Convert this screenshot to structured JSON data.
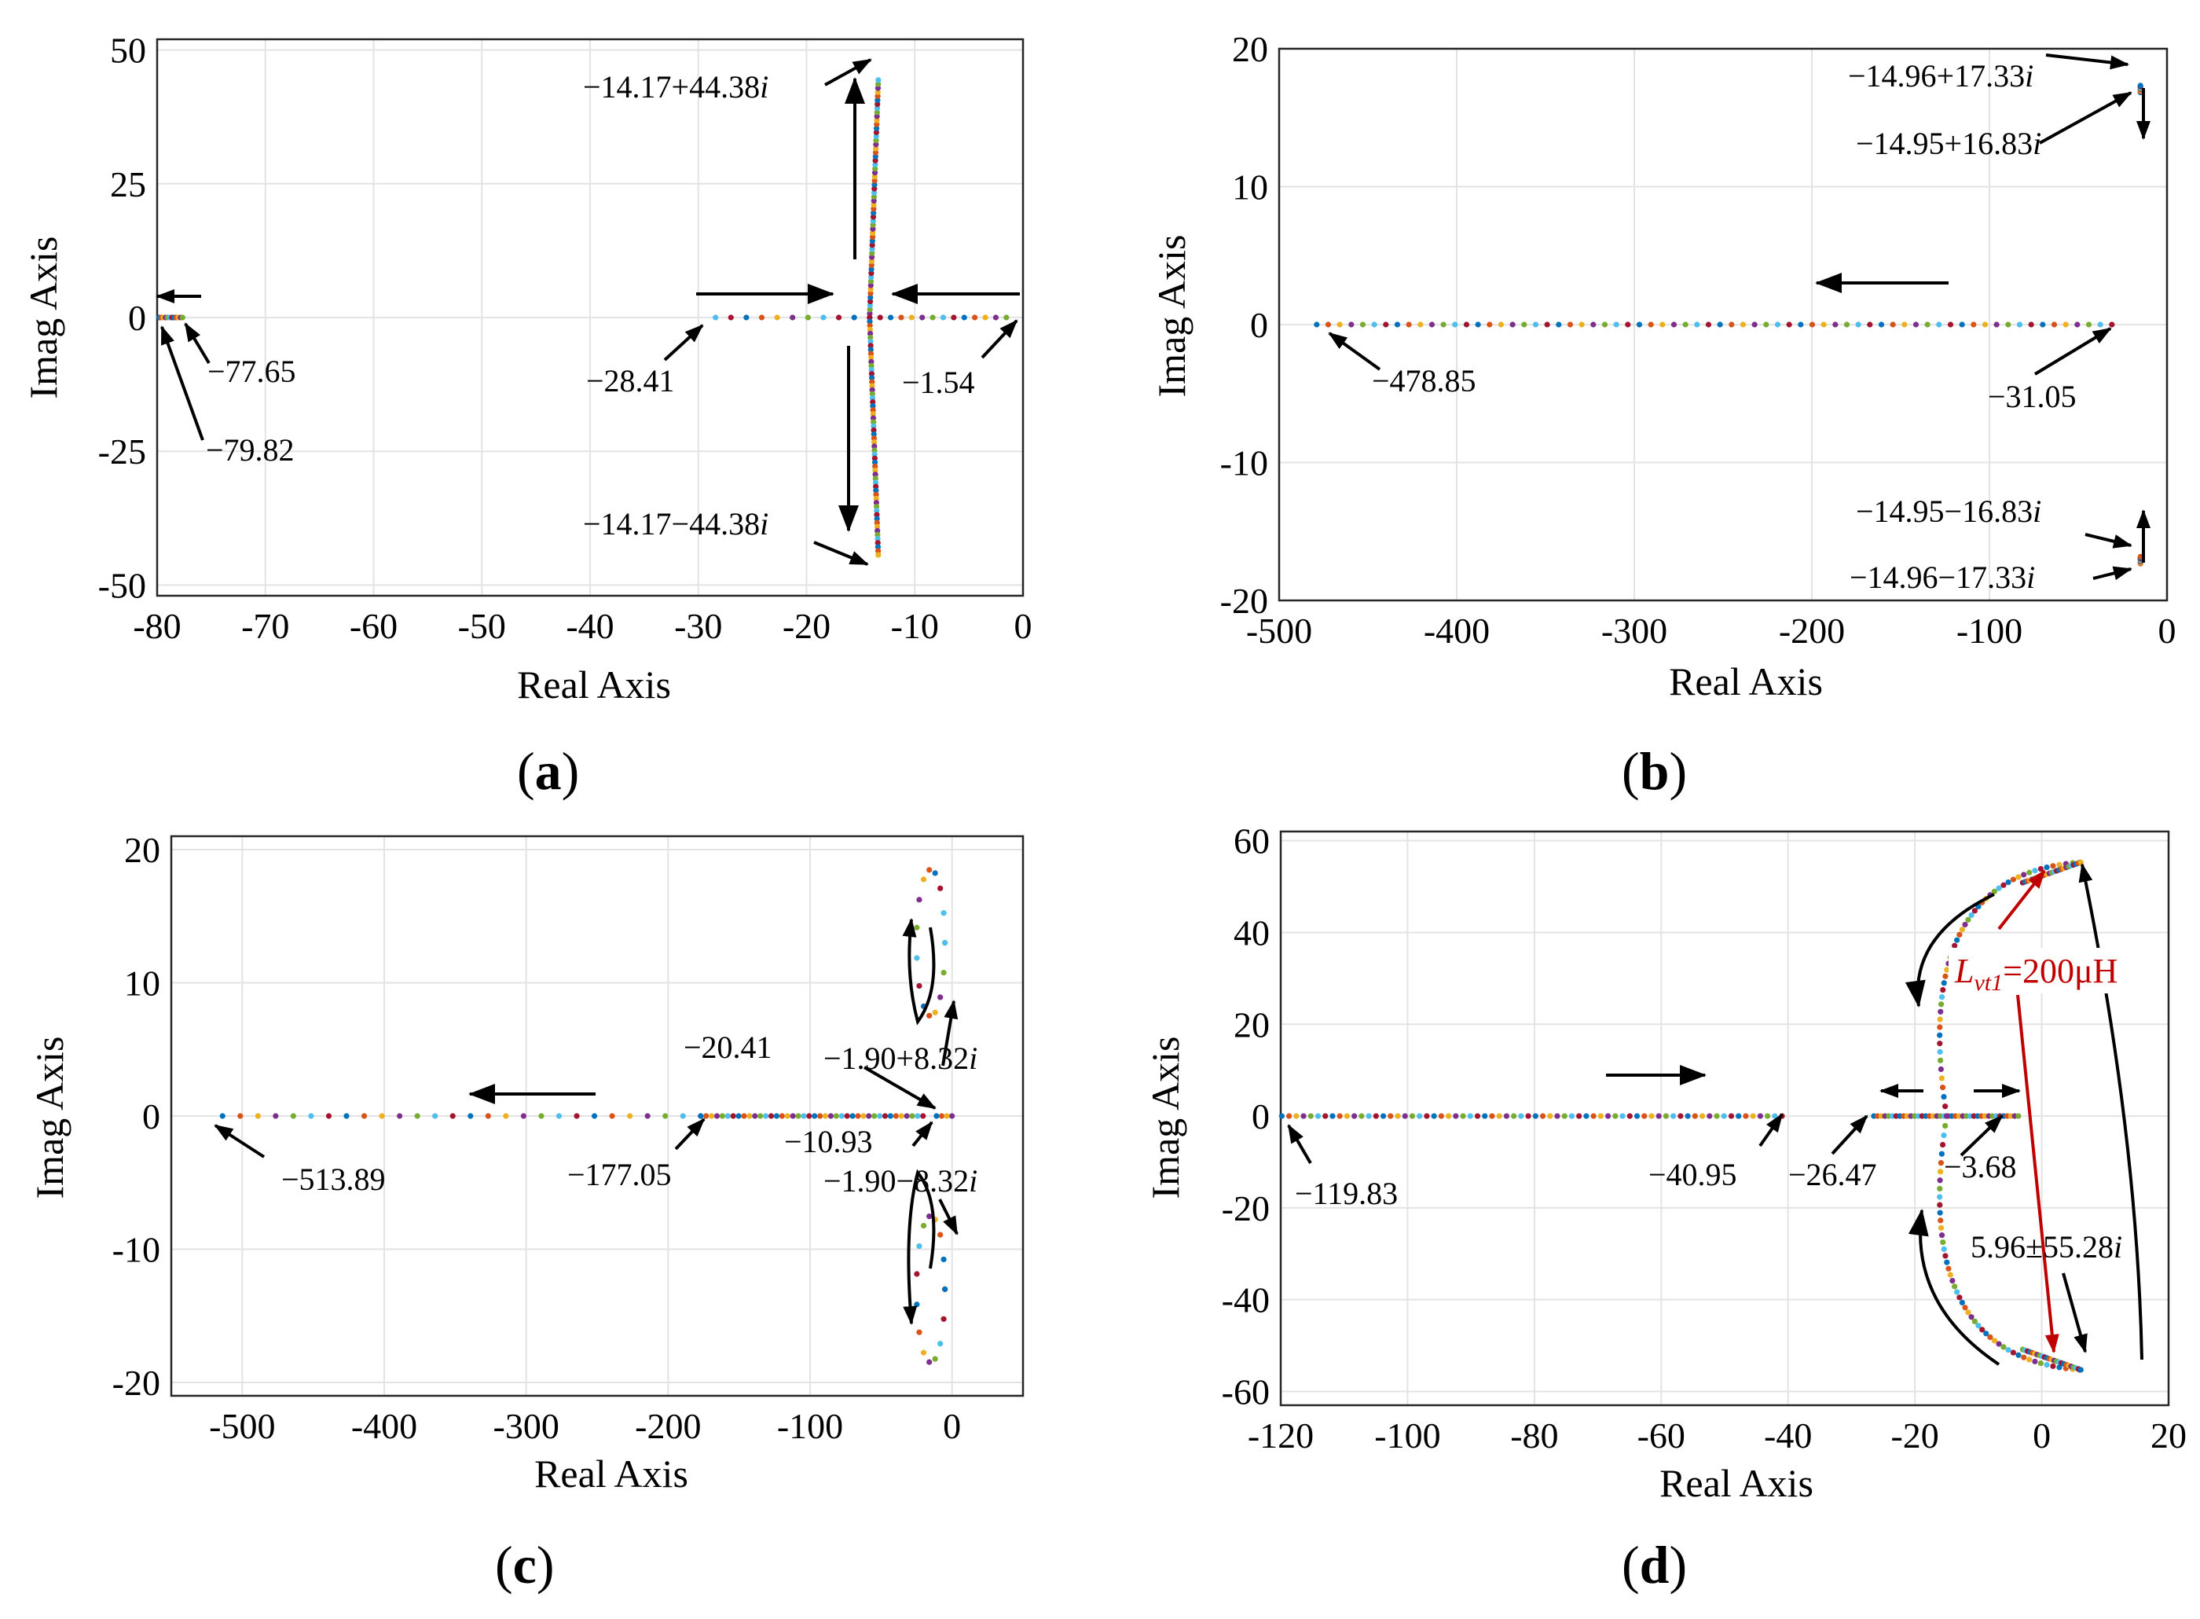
{
  "palette": [
    "#0072bd",
    "#d95319",
    "#edb120",
    "#7e2f8e",
    "#77ac30",
    "#4dbeee",
    "#a2142f"
  ],
  "chart_data": [
    {
      "id": "a",
      "type": "scatter",
      "caption": "a",
      "xlabel": "Real Axis",
      "ylabel": "Imag Axis",
      "xlim": [
        -80,
        0
      ],
      "ylim": [
        -52,
        52
      ],
      "xticks": [
        -80,
        -70,
        -60,
        -50,
        -40,
        -30,
        -20,
        -10,
        0
      ],
      "yticks": [
        -50,
        -25,
        0,
        25,
        50
      ],
      "xtick_labels": [
        "-80",
        "-70",
        "-60",
        "-50",
        "-40",
        "-30",
        "-20",
        "-10",
        "0"
      ],
      "ytick_labels": [
        "-50",
        "-25",
        "0",
        "25",
        "50"
      ],
      "series": [
        {
          "name": "cluster near -79.82",
          "x_range": [
            -79.82,
            -77.65
          ],
          "y": 0,
          "count": 12
        },
        {
          "name": "real branch right",
          "x_range": [
            -14.17,
            -1.54
          ],
          "y": 0,
          "count": 14
        },
        {
          "name": "real branch left",
          "x_range": [
            -28.41,
            -14.17
          ],
          "y": 0,
          "count": 11
        },
        {
          "name": "upper branch",
          "x": -14.17,
          "y_range": [
            0,
            44.38
          ],
          "count": 60
        },
        {
          "name": "lower branch",
          "x": -14.17,
          "y_range": [
            0,
            -44.38
          ],
          "count": 60
        }
      ],
      "annotations": [
        {
          "text": "−14.17+44.38",
          "italic_suffix": "i"
        },
        {
          "text": "−77.65"
        },
        {
          "text": "−79.82"
        },
        {
          "text": "−28.41"
        },
        {
          "text": "−1.54"
        },
        {
          "text": "−14.17−44.38",
          "italic_suffix": "i"
        }
      ]
    },
    {
      "id": "b",
      "type": "scatter",
      "caption": "b",
      "xlabel": "Real Axis",
      "ylabel": "Imag Axis",
      "xlim": [
        -500,
        0
      ],
      "ylim": [
        -20,
        20
      ],
      "xticks": [
        -500,
        -400,
        -300,
        -200,
        -100,
        0
      ],
      "yticks": [
        -20,
        -10,
        0,
        10,
        20
      ],
      "xtick_labels": [
        "-500",
        "-400",
        "-300",
        "-200",
        "-100",
        "0"
      ],
      "ytick_labels": [
        "-20",
        "-10",
        "0",
        "10",
        "20"
      ],
      "series": [
        {
          "name": "real branch",
          "x_range": [
            -478.85,
            -31.05
          ],
          "y": 0,
          "count": 70
        },
        {
          "name": "upper pair",
          "x": -14.96,
          "y_range": [
            16.83,
            17.33
          ],
          "count": 8
        },
        {
          "name": "lower pair",
          "x": -14.96,
          "y_range": [
            -17.33,
            -16.83
          ],
          "count": 8
        }
      ],
      "annotations": [
        {
          "text": "−14.96+17.33",
          "italic_suffix": "i"
        },
        {
          "text": "−14.95+16.83",
          "italic_suffix": "i"
        },
        {
          "text": "−478.85"
        },
        {
          "text": "−31.05"
        },
        {
          "text": "−14.95−16.83",
          "italic_suffix": "i"
        },
        {
          "text": "−14.96−17.33",
          "italic_suffix": "i"
        }
      ]
    },
    {
      "id": "c",
      "type": "scatter",
      "caption": "c",
      "xlabel": "Real Axis",
      "ylabel": "Imag Axis",
      "xlim": [
        -550,
        50
      ],
      "ylim": [
        -21,
        21
      ],
      "xticks": [
        -500,
        -400,
        -300,
        -200,
        -100,
        0
      ],
      "yticks": [
        -20,
        -10,
        0,
        10,
        20
      ],
      "xtick_labels": [
        "-500",
        "-400",
        "-300",
        "-200",
        "-100",
        "0"
      ],
      "ytick_labels": [
        "-20",
        "-10",
        "0",
        "10",
        "20"
      ],
      "series": [
        {
          "name": "real branch sparse",
          "x_range": [
            -513.89,
            -177.05
          ],
          "y": 0,
          "count": 28
        },
        {
          "name": "real branch dense",
          "x_range": [
            -177.05,
            -20.41
          ],
          "y": 0,
          "count": 42
        },
        {
          "name": "near origin",
          "x_range": [
            -10.93,
            0
          ],
          "y": 0,
          "count": 4
        },
        {
          "name": "upper loop",
          "center": [
            -15,
            13
          ],
          "radius": [
            10,
            5.5
          ],
          "count": 16
        },
        {
          "name": "lower loop",
          "center": [
            -15,
            -13
          ],
          "radius": [
            10,
            5.5
          ],
          "count": 16
        }
      ],
      "annotations": [
        {
          "text": "−20.41"
        },
        {
          "text": "−1.90+8.32",
          "italic_suffix": "i"
        },
        {
          "text": "−513.89"
        },
        {
          "text": "−177.05"
        },
        {
          "text": "−10.93"
        },
        {
          "text": "−1.90−8.32",
          "italic_suffix": "i"
        }
      ]
    },
    {
      "id": "d",
      "type": "scatter",
      "caption": "d",
      "xlabel": "Real Axis",
      "ylabel": "Imag Axis",
      "xlim": [
        -120,
        20
      ],
      "ylim": [
        -63,
        62
      ],
      "xticks": [
        -120,
        -100,
        -80,
        -60,
        -40,
        -20,
        0,
        20
      ],
      "yticks": [
        -60,
        -40,
        -20,
        0,
        20,
        40,
        60
      ],
      "xtick_labels": [
        "-120",
        "-100",
        "-80",
        "-60",
        "-40",
        "-20",
        "0",
        "20"
      ],
      "ytick_labels": [
        "-60",
        "-40",
        "-20",
        "0",
        "20",
        "40",
        "60"
      ],
      "series": [
        {
          "name": "left real branch",
          "x_range": [
            -119.83,
            -40.95
          ],
          "y": 0,
          "count": 70
        },
        {
          "name": "middle real branch",
          "x_range": [
            -26.47,
            -3.68
          ],
          "y": 0,
          "count": 40
        },
        {
          "name": "upper arc",
          "from": [
            -15,
            0
          ],
          "to": [
            5.96,
            55.28
          ],
          "count": 50
        },
        {
          "name": "lower arc",
          "from": [
            -15,
            0
          ],
          "to": [
            5.96,
            -55.28
          ],
          "count": 50
        }
      ],
      "annotations": [
        {
          "text": "−119.83"
        },
        {
          "text": "−40.95"
        },
        {
          "text": "−26.47"
        },
        {
          "text": "−3.68"
        },
        {
          "text": "5.96±55.28",
          "italic_suffix": "i"
        },
        {
          "text_prefix": "L",
          "subscript": "vt1",
          "text_suffix": "=200μH",
          "color": "#c00000"
        }
      ]
    }
  ]
}
